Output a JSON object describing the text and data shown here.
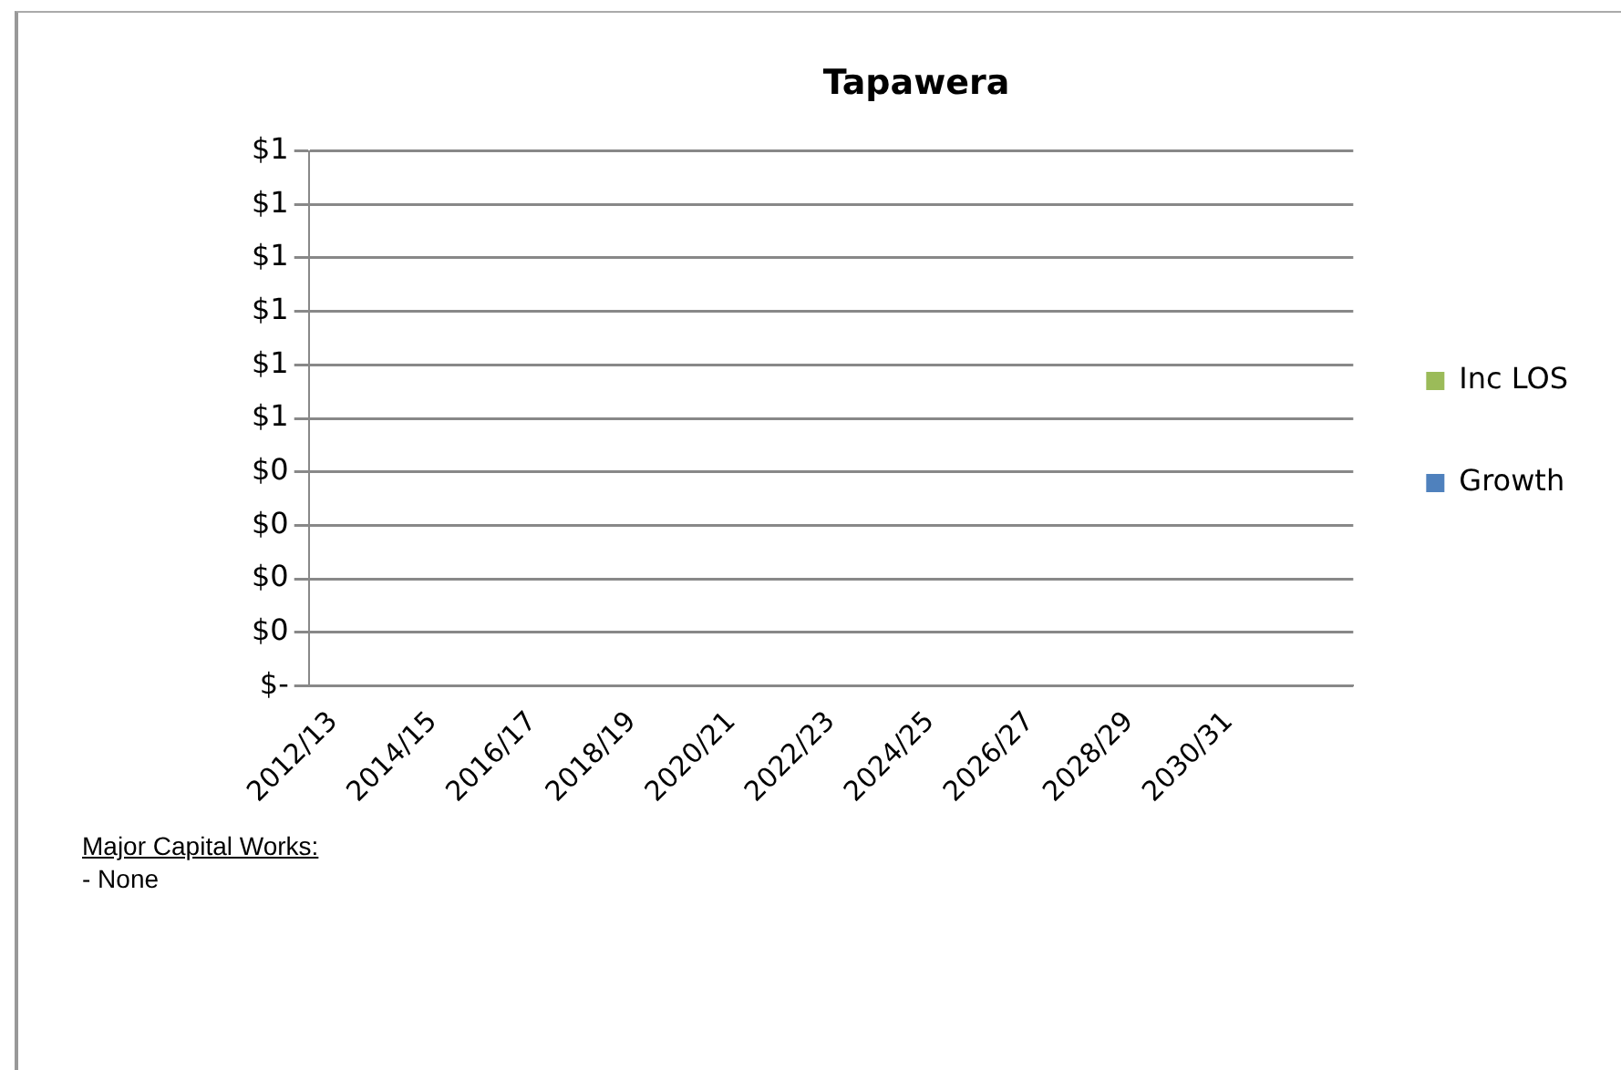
{
  "chart_data": {
    "type": "bar",
    "title": "Tapawera",
    "legend": "right",
    "grid": "y",
    "categories": [
      "2012/13",
      null,
      "2014/15",
      null,
      "2016/17",
      null,
      "2018/19",
      null,
      "2020/21",
      null,
      "2022/23",
      null,
      "2024/25",
      null,
      "2026/27",
      null,
      "2028/29",
      null,
      "2030/31",
      null,
      null
    ],
    "series": [
      {
        "name": "Inc LOS",
        "color": "#9bbb59",
        "values": [
          0,
          0,
          0,
          0,
          0,
          0,
          0,
          0,
          0,
          0,
          0,
          0,
          0,
          0,
          0,
          0,
          0,
          0,
          0,
          0,
          0
        ]
      },
      {
        "name": "Growth",
        "color": "#4f81bd",
        "values": [
          0,
          0,
          0,
          0,
          0,
          0,
          0,
          0,
          0,
          0,
          0,
          0,
          0,
          0,
          0,
          0,
          0,
          0,
          0,
          0,
          0
        ]
      }
    ],
    "ylim": [
      0,
      1
    ],
    "yticks": [
      {
        "value": 0,
        "label": "$-"
      },
      {
        "value": 0.1,
        "label": "$0"
      },
      {
        "value": 0.2,
        "label": "$0"
      },
      {
        "value": 0.3,
        "label": "$0"
      },
      {
        "value": 0.4,
        "label": "$0"
      },
      {
        "value": 0.5,
        "label": "$1"
      },
      {
        "value": 0.6,
        "label": "$1"
      },
      {
        "value": 0.7,
        "label": "$1"
      },
      {
        "value": 0.8,
        "label": "$1"
      },
      {
        "value": 0.9,
        "label": "$1"
      },
      {
        "value": 1,
        "label": "$1"
      }
    ],
    "annotations": [
      "Major Capital Works:",
      "- None"
    ]
  }
}
